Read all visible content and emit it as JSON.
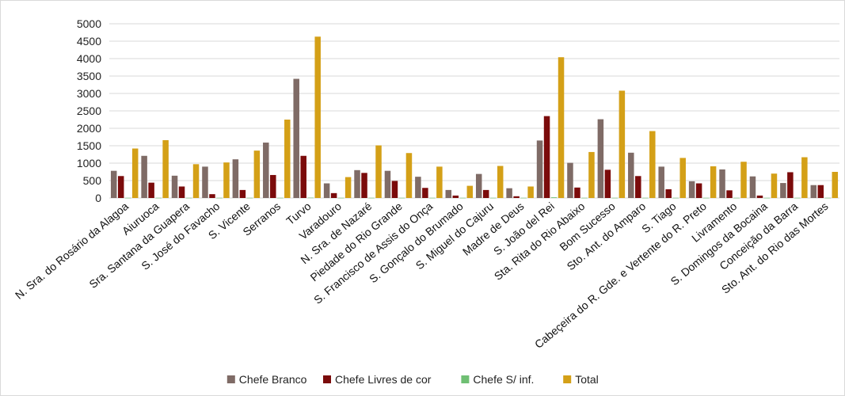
{
  "chart_data": {
    "type": "bar",
    "title": "",
    "xlabel": "",
    "ylabel": "",
    "ylim": [
      0,
      5000
    ],
    "yticks": [
      "0",
      "500",
      "1000",
      "1500",
      "2000",
      "2500",
      "3000",
      "3500",
      "4000",
      "4500",
      "5000"
    ],
    "grid": "horizontal",
    "legend_position": "bottom",
    "categories": [
      "N. Sra. do Rosário da Alagoa",
      "Aiuruoca",
      "Sra. Santana da Guapera",
      "S. José do Favacho",
      "S. Vicente",
      "Serranos",
      "Turvo",
      "Varadouro",
      "N. Sra. de Nazaré",
      "Piedade do Rio Grande",
      "S. Francisco de Assis do Onça",
      "S. Gonçalo do Brumado",
      "S. Miguel do Cajuru",
      "Madre de Deus",
      "S. João del Rei",
      "Sta. Rita do Rio Abaixo",
      "Bom Sucesso",
      "Sto. Ant. do Amparo",
      "S. Tiago",
      "Cabeçeira do R. Gde. e Vertente do R. Preto",
      "Livramento",
      "S. Domingos da Bocaina",
      "Conceição da Barra",
      "Sto. Ant. do Rio das Mortes"
    ],
    "series": [
      {
        "name": "Chefe Branco",
        "color": "#7f6b66",
        "values": [
          780,
          1210,
          640,
          900,
          1110,
          1590,
          3420,
          420,
          800,
          780,
          610,
          230,
          690,
          280,
          1650,
          1010,
          2260,
          1300,
          900,
          480,
          820,
          620,
          430,
          370
        ]
      },
      {
        "name": "Chefe Livres de cor",
        "color": "#7b0b0b",
        "values": [
          630,
          440,
          330,
          110,
          230,
          660,
          1210,
          140,
          720,
          490,
          290,
          70,
          230,
          50,
          2350,
          300,
          810,
          630,
          250,
          420,
          220,
          70,
          740,
          370
        ]
      },
      {
        "name": "Chefe S/ inf.",
        "color": "#6fbf73",
        "values": [
          5,
          5,
          5,
          5,
          5,
          5,
          10,
          5,
          5,
          5,
          5,
          5,
          5,
          5,
          20,
          5,
          5,
          5,
          5,
          5,
          5,
          5,
          5,
          5
        ]
      },
      {
        "name": "Total",
        "color": "#d4a017",
        "values": [
          1420,
          1660,
          970,
          1020,
          1360,
          2250,
          4630,
          600,
          1510,
          1290,
          900,
          350,
          920,
          330,
          4040,
          1320,
          3080,
          1920,
          1150,
          910,
          1040,
          700,
          1170,
          750
        ]
      }
    ]
  }
}
